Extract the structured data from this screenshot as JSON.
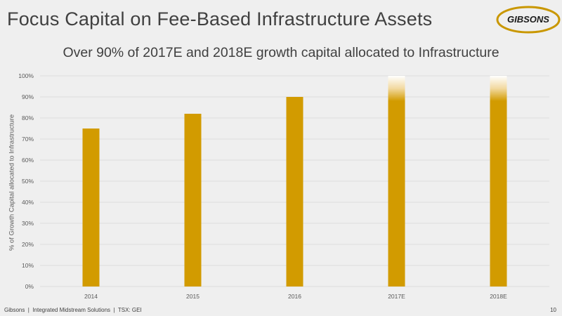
{
  "slide": {
    "title": "Focus Capital on Fee-Based Infrastructure Assets",
    "logo_text": "GIBSONS",
    "footer": "Gibsons  |  Integrated Midstream Solutions  |  TSX: GEI",
    "page_number": "10"
  },
  "colors": {
    "bar": "#d29b00",
    "gridline": "#d9d9d9",
    "logo_gold": "#c99700"
  },
  "chart_data": {
    "type": "bar",
    "title": "Over 90% of 2017E and 2018E growth capital allocated to Infrastructure",
    "xlabel": "",
    "ylabel": "% of Growth Capital allocated to Infrastructure",
    "categories": [
      "2014",
      "2015",
      "2016",
      "2017E",
      "2018E"
    ],
    "values": [
      75,
      82,
      90,
      100,
      100
    ],
    "faded_top": [
      false,
      false,
      false,
      true,
      true
    ],
    "ylim": [
      0,
      100
    ],
    "yticks": [
      0,
      10,
      20,
      30,
      40,
      50,
      60,
      70,
      80,
      90,
      100
    ],
    "ytick_labels": [
      "0%",
      "10%",
      "20%",
      "30%",
      "40%",
      "50%",
      "60%",
      "70%",
      "80%",
      "90%",
      "100%"
    ],
    "grid": true,
    "legend": "none"
  }
}
